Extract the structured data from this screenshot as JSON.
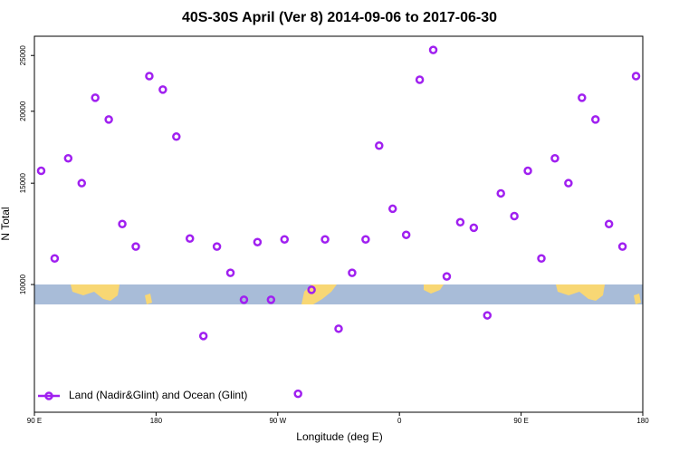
{
  "chart_data": {
    "type": "scatter",
    "title": "40S-30S April (Ver 8)   2014-09-06 to 2017-06-30",
    "x_label": "Longitude (deg E)",
    "y_label": "N Total",
    "log_y": true,
    "xlim": [
      90,
      540
    ],
    "ylim": [
      6000,
      27000
    ],
    "xticks": [
      {
        "value": 90,
        "label": "90 E"
      },
      {
        "value": 180,
        "label": "180"
      },
      {
        "value": 270,
        "label": "90 W"
      },
      {
        "value": 360,
        "label": "0"
      },
      {
        "value": 450,
        "label": "90 E"
      },
      {
        "value": 540,
        "label": "180"
      }
    ],
    "yticks": [
      10000,
      15000,
      20000,
      25000
    ],
    "legend_position": "bottom-left",
    "series": [
      {
        "name": "Land (Nadir&Glint) and Ocean (Glint)",
        "color": "#a020f0",
        "x": [
          95,
          105,
          115,
          125,
          135,
          145,
          155,
          165,
          175,
          185,
          195,
          205,
          215,
          225,
          235,
          245,
          255,
          265,
          275,
          285,
          295,
          305,
          315,
          325,
          335,
          345,
          355,
          365,
          375,
          385,
          395,
          405,
          415,
          425,
          435,
          445,
          455,
          465,
          475,
          485,
          495,
          505,
          515,
          525,
          535
        ],
        "values": [
          15760,
          11100,
          16570,
          15000,
          21110,
          19350,
          12740,
          11640,
          23020,
          21810,
          18070,
          12020,
          8140,
          11640,
          10480,
          9410,
          11850,
          9410,
          11980,
          6460,
          9790,
          11980,
          8380,
          10480,
          11980,
          17430,
          13540,
          12200,
          22690,
          25560,
          10330,
          12830,
          12550,
          8840,
          14400,
          13150,
          15760,
          11100,
          16570,
          15000,
          21110,
          19350,
          12740,
          11640,
          23020
        ]
      }
    ]
  }
}
